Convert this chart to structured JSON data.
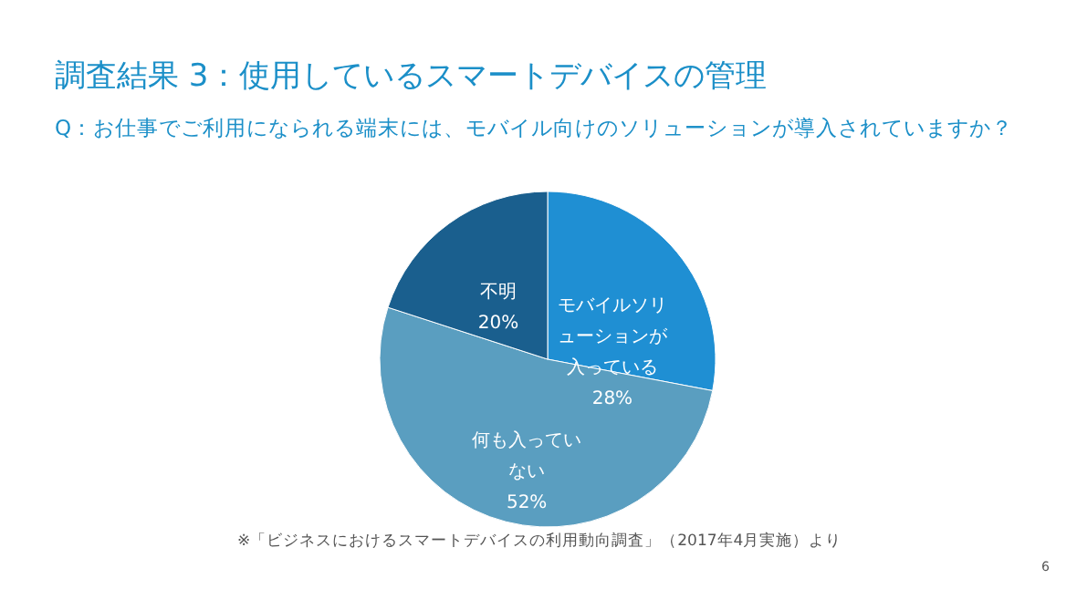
{
  "chart_data": {
    "type": "pie",
    "title": "調査結果 3：使用しているスマートデバイスの管理",
    "subtitle": "Q：お仕事でご利用になられる端末には、モバイル向けのソリューションが導入されていますか？",
    "categories": [
      "モバイルソリューションが入っている",
      "何も入っていない",
      "不明"
    ],
    "values": [
      28,
      52,
      20
    ],
    "value_labels": [
      "28%",
      "52%",
      "20%"
    ],
    "colors": [
      "#1f8fd3",
      "#5a9ec0",
      "#1a5f8e"
    ],
    "annotations": [
      "※「ビジネスにおけるスマートデバイスの利用動向調査」（2017年4月実施）より",
      "6"
    ]
  }
}
